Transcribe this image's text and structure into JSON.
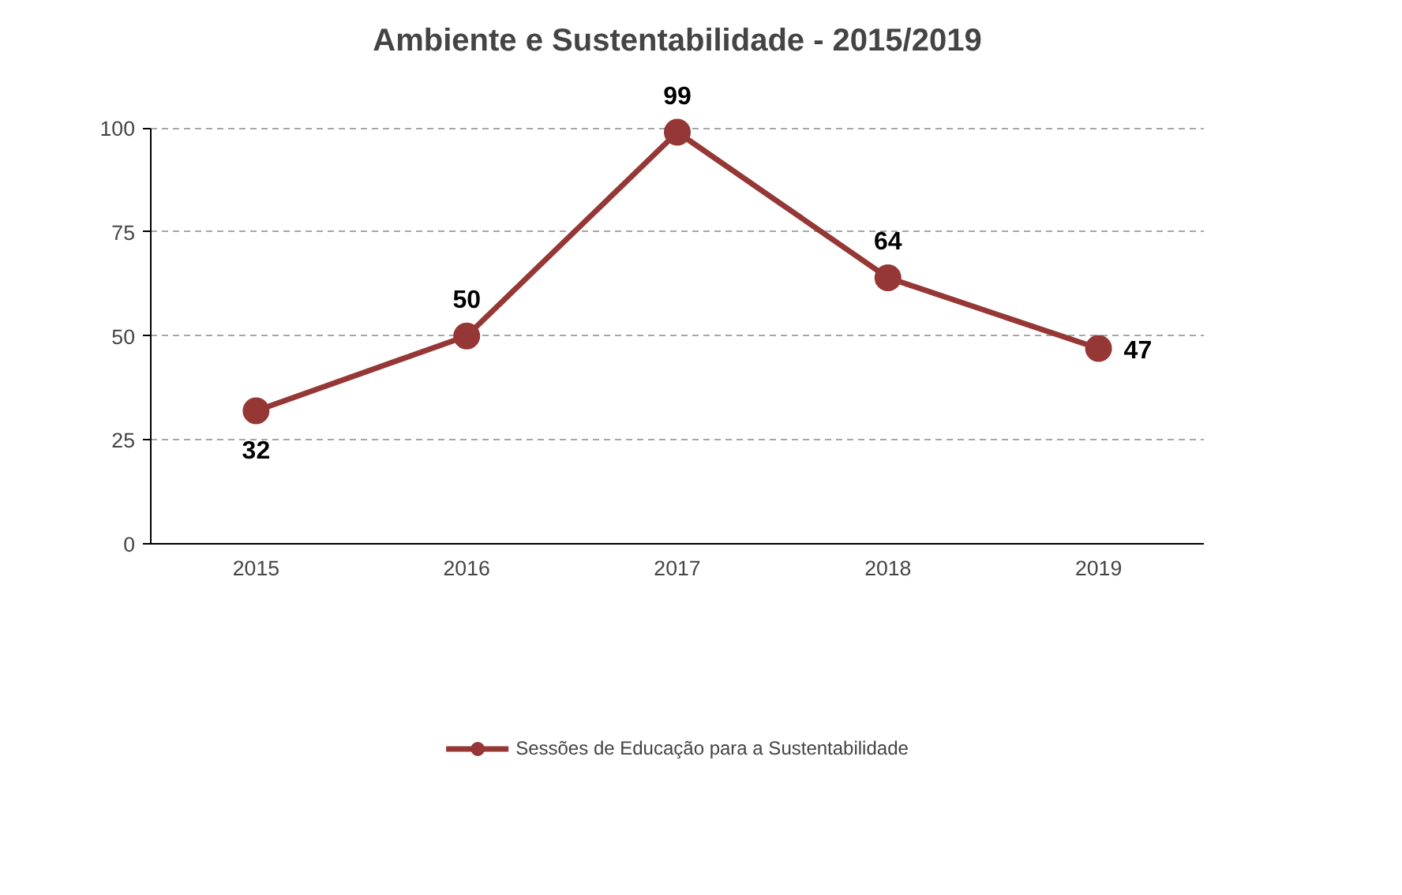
{
  "chart_data": {
    "type": "line",
    "title": "Ambiente e Sustentabilidade - 2015/2019",
    "categories": [
      "2015",
      "2016",
      "2017",
      "2018",
      "2019"
    ],
    "series": [
      {
        "name": "Sessões de Educação para a Sustentabilidade",
        "color": "#953735",
        "values": [
          32,
          50,
          99,
          64,
          47
        ]
      }
    ],
    "ylim": [
      0,
      100
    ],
    "yticks": [
      0,
      25,
      50,
      75,
      100
    ],
    "grid": "y",
    "legend": "bottom",
    "marker": "circle",
    "line_style": "solid",
    "data_labels": true
  }
}
